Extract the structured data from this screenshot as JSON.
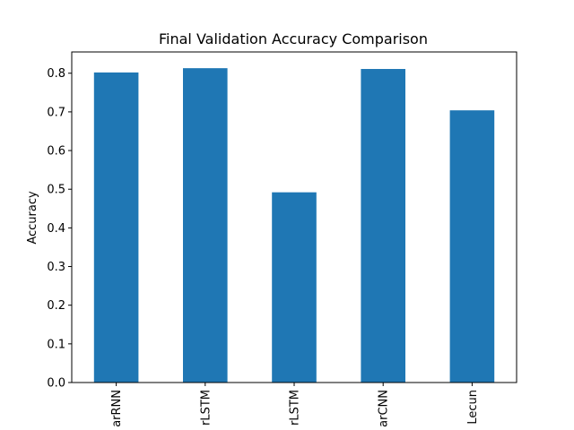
{
  "chart_data": {
    "type": "bar",
    "title": "Final Validation Accuracy Comparison",
    "xlabel": "",
    "ylabel": "Accuracy",
    "categories": [
      "arRNN",
      "rLSTM",
      "rLSTM",
      "arCNN",
      "Lecun"
    ],
    "values": [
      0.802,
      0.813,
      0.492,
      0.811,
      0.704
    ],
    "ylim": [
      0,
      0.855
    ],
    "yticks": [
      0.0,
      0.1,
      0.2,
      0.3,
      0.4,
      0.5,
      0.6,
      0.7,
      0.8
    ],
    "ytick_labels": [
      "0.0",
      "0.1",
      "0.2",
      "0.3",
      "0.4",
      "0.5",
      "0.6",
      "0.7",
      "0.8"
    ],
    "grid": false,
    "legend": "none",
    "bar_color": "#1f77b4"
  }
}
